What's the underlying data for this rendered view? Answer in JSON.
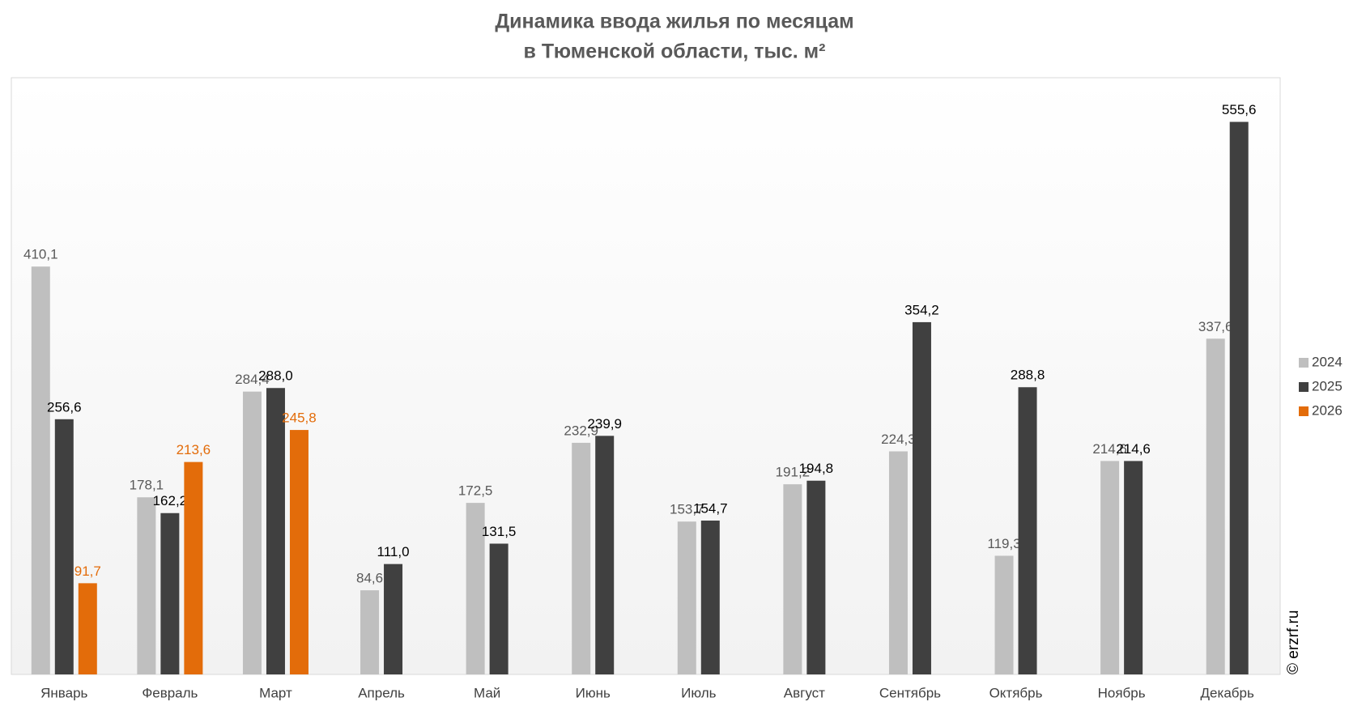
{
  "chart_data": {
    "type": "bar",
    "title": [
      "Динамика ввода жилья по месяцам",
      "в Тюменской области, тыс. м²"
    ],
    "categories": [
      "Январь",
      "Февраль",
      "Март",
      "Апрель",
      "Май",
      "Июнь",
      "Июль",
      "Август",
      "Сентябрь",
      "Октябрь",
      "Ноябрь",
      "Декабрь"
    ],
    "series": [
      {
        "name": "2024",
        "color": "#bfbfbf",
        "label_color": "#595959",
        "values": [
          410.1,
          178.1,
          284.4,
          84.6,
          172.5,
          232.9,
          153.7,
          191.2,
          224.3,
          119.3,
          214.6,
          337.6
        ],
        "value_labels": [
          "410,1",
          "178,1",
          "284,4",
          "84,6",
          "172,5",
          "232,9",
          "153,7",
          "191,2",
          "224,3",
          "119,3",
          "214,6",
          "337,6"
        ]
      },
      {
        "name": "2025",
        "color": "#404040",
        "label_color": "#000000",
        "values": [
          256.6,
          162.2,
          288.0,
          111.0,
          131.5,
          239.9,
          154.7,
          194.8,
          354.2,
          288.8,
          214.6,
          555.6
        ],
        "value_labels": [
          "256,6",
          "162,2",
          "288,0",
          "111,0",
          "131,5",
          "239,9",
          "154,7",
          "194,8",
          "354,2",
          "288,8",
          "214,6",
          "555,6"
        ]
      },
      {
        "name": "2026",
        "color": "#e36c0a",
        "label_color": "#e36c0a",
        "values": [
          91.7,
          213.6,
          245.8,
          null,
          null,
          null,
          null,
          null,
          null,
          null,
          null,
          null
        ],
        "value_labels": [
          "91,7",
          "213,6",
          "245,8",
          null,
          null,
          null,
          null,
          null,
          null,
          null,
          null,
          null
        ]
      }
    ],
    "ylim": [
      0,
      600
    ],
    "legend": "right",
    "watermark": "© erzrf.ru"
  }
}
